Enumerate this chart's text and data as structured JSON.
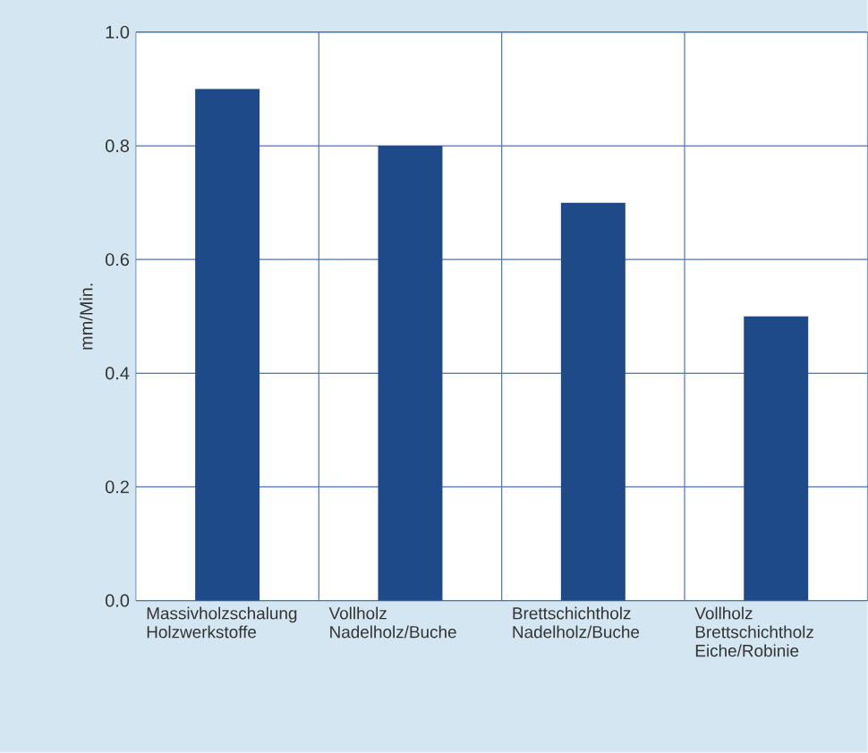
{
  "chart_data": {
    "type": "bar",
    "ylabel": "mm/Min.",
    "categories": [
      "Massivholzschalung Holzwerkstoffe",
      "Vollholz Nadelholz/Buche",
      "Brettschichtholz Nadelholz/Buche",
      "Vollholz Brettschichtholz Eiche/Robinie"
    ],
    "values": [
      0.9,
      0.8,
      0.7,
      0.5
    ],
    "color": "#1f4a8a",
    "ylim": [
      0,
      1
    ],
    "yticks": [
      {
        "value": 0,
        "label": "0.0"
      },
      {
        "value": 0.2,
        "label": "0.2"
      },
      {
        "value": 0.4,
        "label": "0.4"
      },
      {
        "value": 0.6,
        "label": "0.6"
      },
      {
        "value": 0.8,
        "label": "0.8"
      },
      {
        "value": 1,
        "label": "1.0"
      }
    ],
    "grid": true
  }
}
